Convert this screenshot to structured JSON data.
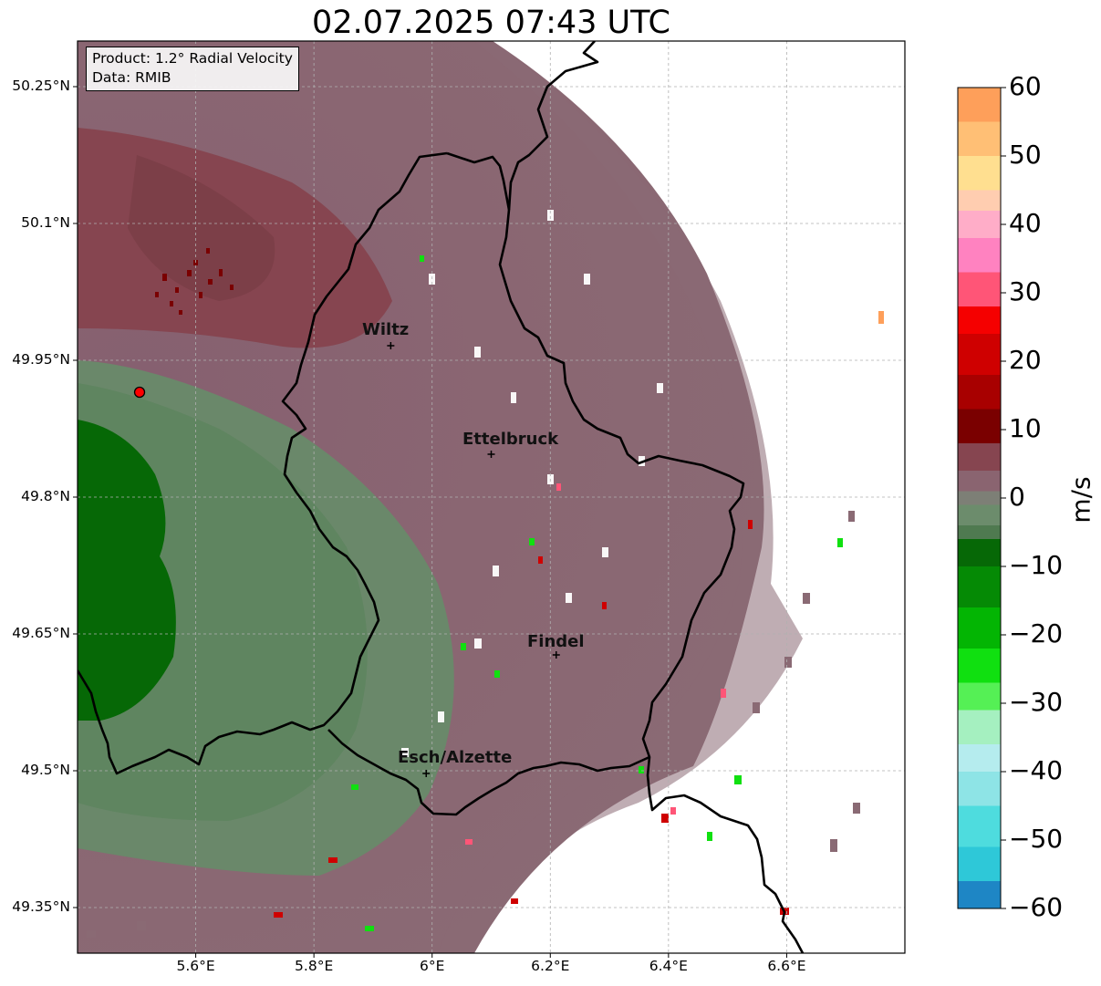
{
  "title": "02.07.2025 07:43 UTC",
  "info_box": {
    "product": "Product: 1.2° Radial Velocity",
    "data_source": "Data: RMIB"
  },
  "cities": [
    {
      "name": "Wiltz",
      "lon": 5.93,
      "lat": 49.966
    },
    {
      "name": "Ettelbruck",
      "lon": 6.1,
      "lat": 49.847
    },
    {
      "name": "Findel",
      "lon": 6.21,
      "lat": 49.627
    },
    {
      "name": "Esch/Alzette",
      "lon": 5.99,
      "lat": 49.497
    }
  ],
  "radar_site": {
    "lon": 5.505,
    "lat": 49.915,
    "marker_color": "#ff0000"
  },
  "axes": {
    "lon_range": [
      5.4,
      6.8
    ],
    "lat_range": [
      49.3,
      50.3
    ],
    "lon_ticks": [
      {
        "value": 5.6,
        "label": "5.6°E"
      },
      {
        "value": 5.8,
        "label": "5.8°E"
      },
      {
        "value": 6.0,
        "label": "6°E"
      },
      {
        "value": 6.2,
        "label": "6.2°E"
      },
      {
        "value": 6.4,
        "label": "6.4°E"
      },
      {
        "value": 6.6,
        "label": "6.6°E"
      }
    ],
    "lat_ticks": [
      {
        "value": 50.25,
        "label": "50.25°N"
      },
      {
        "value": 50.1,
        "label": "50.1°N"
      },
      {
        "value": 49.95,
        "label": "49.95°N"
      },
      {
        "value": 49.8,
        "label": "49.8°N"
      },
      {
        "value": 49.65,
        "label": "49.65°N"
      },
      {
        "value": 49.5,
        "label": "49.5°N"
      },
      {
        "value": 49.35,
        "label": "49.35°N"
      }
    ],
    "gridlines": true
  },
  "colorbar": {
    "unit": "m/s",
    "range": [
      -60,
      60
    ],
    "ticks": [
      {
        "value": 60,
        "label": "60"
      },
      {
        "value": 50,
        "label": "50"
      },
      {
        "value": 40,
        "label": "40"
      },
      {
        "value": 30,
        "label": "30"
      },
      {
        "value": 20,
        "label": "20"
      },
      {
        "value": 10,
        "label": "10"
      },
      {
        "value": 0,
        "label": "0"
      },
      {
        "value": -10,
        "label": "−10"
      },
      {
        "value": -20,
        "label": "−20"
      },
      {
        "value": -30,
        "label": "−30"
      },
      {
        "value": -40,
        "label": "−40"
      },
      {
        "value": -50,
        "label": "−50"
      },
      {
        "value": -60,
        "label": "−60"
      }
    ],
    "stops": [
      {
        "from": 55,
        "to": 60,
        "color": "#fe9f5a"
      },
      {
        "from": 50,
        "to": 55,
        "color": "#ffbf75"
      },
      {
        "from": 45,
        "to": 50,
        "color": "#ffdf90"
      },
      {
        "from": 42,
        "to": 45,
        "color": "#ffcdb0"
      },
      {
        "from": 38,
        "to": 42,
        "color": "#ffadc8"
      },
      {
        "from": 33,
        "to": 38,
        "color": "#ff82c0"
      },
      {
        "from": 28,
        "to": 33,
        "color": "#ff5577"
      },
      {
        "from": 24,
        "to": 28,
        "color": "#f50000"
      },
      {
        "from": 18,
        "to": 24,
        "color": "#cf0000"
      },
      {
        "from": 13,
        "to": 18,
        "color": "#a80000"
      },
      {
        "from": 8,
        "to": 13,
        "color": "#7a0000"
      },
      {
        "from": 4,
        "to": 8,
        "color": "#864550"
      },
      {
        "from": 1,
        "to": 4,
        "color": "#8a6470"
      },
      {
        "from": -1,
        "to": 1,
        "color": "#7d7f76"
      },
      {
        "from": -4,
        "to": -1,
        "color": "#6c8c6c"
      },
      {
        "from": -6,
        "to": -4,
        "color": "#4f7a50"
      },
      {
        "from": -10,
        "to": -6,
        "color": "#066806"
      },
      {
        "from": -16,
        "to": -10,
        "color": "#058a05"
      },
      {
        "from": -22,
        "to": -16,
        "color": "#03b503"
      },
      {
        "from": -27,
        "to": -22,
        "color": "#10e010"
      },
      {
        "from": -31,
        "to": -27,
        "color": "#55f055"
      },
      {
        "from": -36,
        "to": -31,
        "color": "#a5f0c0"
      },
      {
        "from": -40,
        "to": -36,
        "color": "#b5ecee"
      },
      {
        "from": -45,
        "to": -40,
        "color": "#8ee4e6"
      },
      {
        "from": -51,
        "to": -45,
        "color": "#4edcde"
      },
      {
        "from": -56,
        "to": -51,
        "color": "#2ec8d8"
      },
      {
        "from": -60,
        "to": -56,
        "color": "#1e86c5"
      }
    ]
  }
}
